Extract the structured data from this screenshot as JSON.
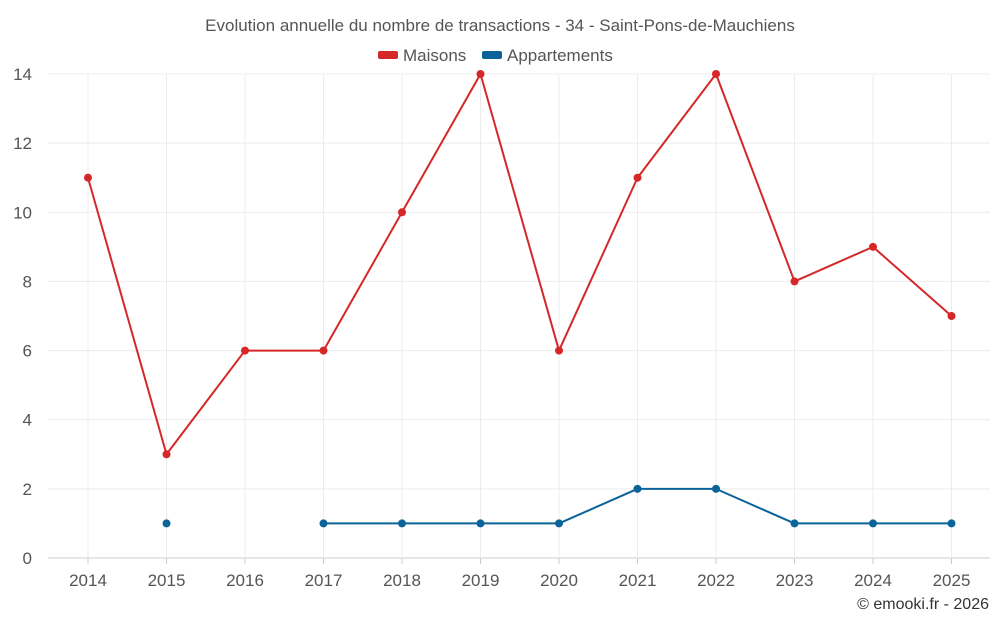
{
  "chart_data": {
    "type": "line",
    "title": "Evolution annuelle du nombre de transactions - 34 - Saint-Pons-de-Mauchiens",
    "categories": [
      "2014",
      "2015",
      "2016",
      "2017",
      "2018",
      "2019",
      "2020",
      "2021",
      "2022",
      "2023",
      "2024",
      "2025"
    ],
    "series": [
      {
        "name": "Maisons",
        "color": "#d62728",
        "values": [
          11,
          3,
          6,
          6,
          10,
          14,
          6,
          11,
          14,
          8,
          9,
          7
        ]
      },
      {
        "name": "Appartements",
        "color": "#0a6399",
        "values": [
          null,
          1,
          null,
          1,
          1,
          1,
          1,
          2,
          2,
          1,
          1,
          1
        ]
      }
    ],
    "ylim": [
      0,
      14
    ],
    "yticks": [
      0,
      2,
      4,
      6,
      8,
      10,
      12,
      14
    ],
    "grid": true,
    "legend": "top-center",
    "xlabel": "",
    "ylabel": ""
  },
  "credit": "© emooki.fr - 2026"
}
